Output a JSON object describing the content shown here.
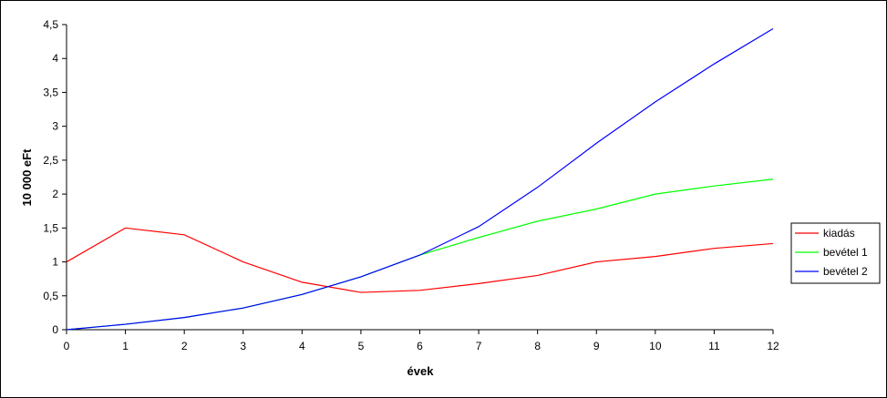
{
  "chart_data": {
    "type": "line",
    "title": "",
    "xlabel": "évek",
    "ylabel": "10 000 eFt",
    "x": [
      0,
      1,
      2,
      3,
      4,
      5,
      6,
      7,
      8,
      9,
      10,
      11,
      12
    ],
    "x_tick_labels": [
      "0",
      "1",
      "2",
      "3",
      "4",
      "5",
      "6",
      "7",
      "8",
      "9",
      "10",
      "11",
      "12"
    ],
    "y_tick_labels": [
      "0",
      "0,5",
      "1",
      "1,5",
      "2",
      "2,5",
      "3",
      "3,5",
      "4",
      "4,5"
    ],
    "y_ticks": [
      0,
      0.5,
      1,
      1.5,
      2,
      2.5,
      3,
      3.5,
      4,
      4.5
    ],
    "xlim": [
      0,
      12
    ],
    "ylim": [
      0,
      4.5
    ],
    "grid": false,
    "legend_position": "right",
    "series": [
      {
        "name": "kiadás",
        "color": "#ff0000",
        "values": [
          1.0,
          1.5,
          1.4,
          1.0,
          0.7,
          0.55,
          0.58,
          0.68,
          0.8,
          1.0,
          1.08,
          1.2,
          1.27
        ]
      },
      {
        "name": "bevétel 1",
        "color": "#00ff00",
        "values": [
          0.0,
          0.08,
          0.18,
          0.32,
          0.52,
          0.78,
          1.1,
          1.36,
          1.6,
          1.78,
          2.0,
          2.12,
          2.22
        ]
      },
      {
        "name": "bevétel 2",
        "color": "#0000ff",
        "values": [
          0.0,
          0.08,
          0.18,
          0.32,
          0.52,
          0.78,
          1.1,
          1.52,
          2.1,
          2.75,
          3.36,
          3.92,
          4.44
        ]
      }
    ]
  }
}
